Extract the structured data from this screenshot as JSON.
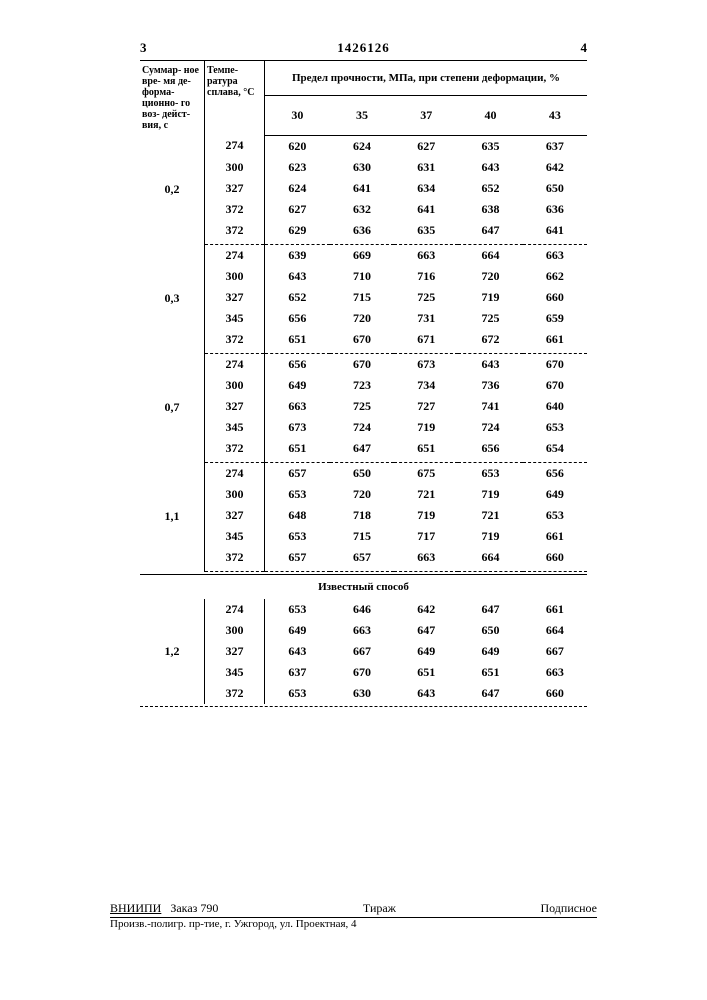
{
  "page_left": "3",
  "patent_number": "1426126",
  "page_right": "4",
  "headers": {
    "col1": "Суммар-\nное вре-\nмя де-\nформа-\nционно-\nго воз-\nдейст-\nвия, с",
    "col2": "Темпе-\nратура\nсплава,\n°C",
    "span": "Предел прочности, МПа, при степени деформации, %",
    "sub": [
      "30",
      "35",
      "37",
      "40",
      "43"
    ]
  },
  "groups": [
    {
      "label": "0,2",
      "rows": [
        {
          "t": "274",
          "v": [
            "620",
            "624",
            "627",
            "635",
            "637"
          ]
        },
        {
          "t": "300",
          "v": [
            "623",
            "630",
            "631",
            "643",
            "642"
          ]
        },
        {
          "t": "327",
          "v": [
            "624",
            "641",
            "634",
            "652",
            "650"
          ]
        },
        {
          "t": "372",
          "v": [
            "627",
            "632",
            "641",
            "638",
            "636"
          ]
        },
        {
          "t": "372",
          "v": [
            "629",
            "636",
            "635",
            "647",
            "641"
          ]
        }
      ]
    },
    {
      "label": "0,3",
      "rows": [
        {
          "t": "274",
          "v": [
            "639",
            "669",
            "663",
            "664",
            "663"
          ]
        },
        {
          "t": "300",
          "v": [
            "643",
            "710",
            "716",
            "720",
            "662"
          ]
        },
        {
          "t": "327",
          "v": [
            "652",
            "715",
            "725",
            "719",
            "660"
          ]
        },
        {
          "t": "345",
          "v": [
            "656",
            "720",
            "731",
            "725",
            "659"
          ]
        },
        {
          "t": "372",
          "v": [
            "651",
            "670",
            "671",
            "672",
            "661"
          ]
        }
      ]
    },
    {
      "label": "0,7",
      "rows": [
        {
          "t": "274",
          "v": [
            "656",
            "670",
            "673",
            "643",
            "670"
          ]
        },
        {
          "t": "300",
          "v": [
            "649",
            "723",
            "734",
            "736",
            "670"
          ]
        },
        {
          "t": "327",
          "v": [
            "663",
            "725",
            "727",
            "741",
            "640"
          ]
        },
        {
          "t": "345",
          "v": [
            "673",
            "724",
            "719",
            "724",
            "653"
          ]
        },
        {
          "t": "372",
          "v": [
            "651",
            "647",
            "651",
            "656",
            "654"
          ]
        }
      ]
    },
    {
      "label": "1,1",
      "rows": [
        {
          "t": "274",
          "v": [
            "657",
            "650",
            "675",
            "653",
            "656"
          ]
        },
        {
          "t": "300",
          "v": [
            "653",
            "720",
            "721",
            "719",
            "649"
          ]
        },
        {
          "t": "327",
          "v": [
            "648",
            "718",
            "719",
            "721",
            "653"
          ]
        },
        {
          "t": "345",
          "v": [
            "653",
            "715",
            "717",
            "719",
            "661"
          ]
        },
        {
          "t": "372",
          "v": [
            "657",
            "657",
            "663",
            "664",
            "660"
          ]
        }
      ]
    }
  ],
  "known_label": "Известный способ",
  "known_group": {
    "label": "1,2",
    "rows": [
      {
        "t": "274",
        "v": [
          "653",
          "646",
          "642",
          "647",
          "661"
        ]
      },
      {
        "t": "300",
        "v": [
          "649",
          "663",
          "647",
          "650",
          "664"
        ]
      },
      {
        "t": "327",
        "v": [
          "643",
          "667",
          "649",
          "649",
          "667"
        ]
      },
      {
        "t": "345",
        "v": [
          "637",
          "670",
          "651",
          "651",
          "663"
        ]
      },
      {
        "t": "372",
        "v": [
          "653",
          "630",
          "643",
          "647",
          "660"
        ]
      }
    ]
  },
  "footer": {
    "org": "ВНИИПИ",
    "order": "Заказ 790",
    "tirazh": "Тираж",
    "sub": "Подписное",
    "addr": "Произв.-полигр. пр-тие, г. Ужгород, ул. Проектная, 4"
  },
  "style": {
    "bg": "#ffffff",
    "fg": "#000000",
    "font": "Times New Roman",
    "body_fontsize": 12,
    "header_fontsize": 10
  }
}
